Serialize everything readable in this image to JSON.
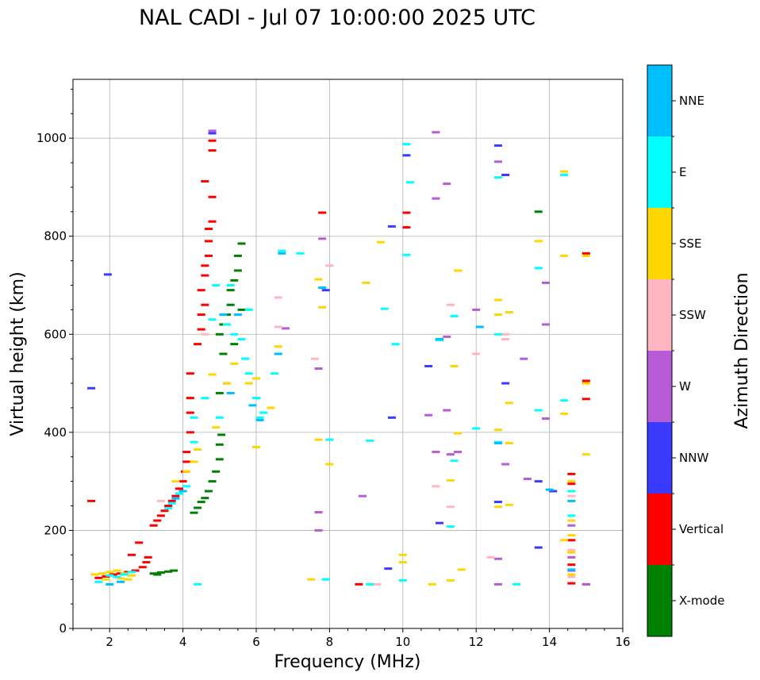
{
  "chart_data": {
    "type": "scatter",
    "title": "NAL CADI - Jul 07 10:00:00 2025 UTC",
    "xlabel": "Frequency (MHz)",
    "ylabel": "Virtual height (km)",
    "xlim": [
      1,
      16
    ],
    "ylim": [
      0,
      1120
    ],
    "xticks": [
      2,
      4,
      6,
      8,
      10,
      12,
      14,
      16
    ],
    "yticks": [
      0,
      200,
      400,
      600,
      800,
      1000
    ],
    "grid": true,
    "colorbar": {
      "label": "Azimuth Direction",
      "categories": [
        {
          "name": "X-mode",
          "color": "#008000"
        },
        {
          "name": "Vertical",
          "color": "#ff0000"
        },
        {
          "name": "NNW",
          "color": "#3a3aff"
        },
        {
          "name": "W",
          "color": "#b65cd6"
        },
        {
          "name": "SSW",
          "color": "#ffb6c1"
        },
        {
          "name": "SSE",
          "color": "#ffd700"
        },
        {
          "name": "E",
          "color": "#00ffff"
        },
        {
          "name": "NNE",
          "color": "#00bfff"
        }
      ]
    },
    "series": [
      {
        "name": "X-mode",
        "points": [
          [
            3.2,
            112
          ],
          [
            3.4,
            114
          ],
          [
            3.6,
            116
          ],
          [
            3.3,
            110
          ],
          [
            3.75,
            118
          ],
          [
            4.3,
            236
          ],
          [
            4.4,
            246
          ],
          [
            4.5,
            258
          ],
          [
            4.6,
            266
          ],
          [
            4.7,
            280
          ],
          [
            4.8,
            300
          ],
          [
            4.9,
            320
          ],
          [
            5.0,
            345
          ],
          [
            5.0,
            375
          ],
          [
            5.05,
            395
          ],
          [
            5.0,
            600
          ],
          [
            5.1,
            620
          ],
          [
            5.2,
            640
          ],
          [
            5.3,
            660
          ],
          [
            5.3,
            690
          ],
          [
            5.4,
            710
          ],
          [
            5.5,
            730
          ],
          [
            5.5,
            760
          ],
          [
            5.6,
            785
          ],
          [
            5.0,
            480
          ],
          [
            5.2,
            500
          ],
          [
            5.1,
            560
          ],
          [
            5.4,
            580
          ],
          [
            5.6,
            650
          ],
          [
            13.7,
            850
          ]
        ]
      },
      {
        "name": "Vertical",
        "points": [
          [
            1.7,
            103
          ],
          [
            1.9,
            106
          ],
          [
            2.1,
            110
          ],
          [
            2.3,
            112
          ],
          [
            2.5,
            115
          ],
          [
            2.7,
            118
          ],
          [
            2.9,
            125
          ],
          [
            3.0,
            135
          ],
          [
            3.05,
            145
          ],
          [
            3.2,
            210
          ],
          [
            3.3,
            220
          ],
          [
            3.4,
            230
          ],
          [
            3.5,
            240
          ],
          [
            3.6,
            250
          ],
          [
            3.7,
            260
          ],
          [
            3.8,
            270
          ],
          [
            3.9,
            285
          ],
          [
            4.0,
            300
          ],
          [
            4.05,
            320
          ],
          [
            4.1,
            340
          ],
          [
            4.1,
            360
          ],
          [
            4.2,
            400
          ],
          [
            4.2,
            440
          ],
          [
            4.2,
            470
          ],
          [
            4.2,
            520
          ],
          [
            4.4,
            580
          ],
          [
            4.5,
            610
          ],
          [
            4.5,
            640
          ],
          [
            4.6,
            660
          ],
          [
            4.5,
            690
          ],
          [
            4.6,
            720
          ],
          [
            4.6,
            740
          ],
          [
            4.7,
            760
          ],
          [
            4.7,
            790
          ],
          [
            4.7,
            815
          ],
          [
            4.8,
            830
          ],
          [
            4.8,
            880
          ],
          [
            4.6,
            912
          ],
          [
            4.8,
            975
          ],
          [
            4.8,
            995
          ],
          [
            1.5,
            260
          ],
          [
            2.6,
            150
          ],
          [
            2.8,
            175
          ],
          [
            7.8,
            848
          ],
          [
            10.1,
            848
          ],
          [
            10.1,
            818
          ],
          [
            15.0,
            765
          ],
          [
            15.0,
            505
          ],
          [
            15.0,
            468
          ],
          [
            14.6,
            315
          ],
          [
            14.6,
            295
          ],
          [
            14.6,
            180
          ],
          [
            14.6,
            130
          ],
          [
            14.6,
            92
          ],
          [
            8.8,
            90
          ]
        ]
      },
      {
        "name": "NNW",
        "points": [
          [
            1.5,
            490
          ],
          [
            1.95,
            722
          ],
          [
            4.8,
            1010
          ],
          [
            7.9,
            690
          ],
          [
            9.7,
            820
          ],
          [
            9.7,
            430
          ],
          [
            9.6,
            122
          ],
          [
            10.7,
            535
          ],
          [
            11,
            215
          ],
          [
            12.6,
            985
          ],
          [
            12.6,
            258
          ],
          [
            12.8,
            500
          ],
          [
            12.8,
            925
          ],
          [
            13.7,
            300
          ],
          [
            13.7,
            165
          ],
          [
            14.1,
            280
          ],
          [
            15.0,
            90
          ],
          [
            10.1,
            965
          ]
        ]
      },
      {
        "name": "W",
        "points": [
          [
            4.8,
            1015
          ],
          [
            6.8,
            612
          ],
          [
            7.8,
            795
          ],
          [
            7.7,
            530
          ],
          [
            7.7,
            200
          ],
          [
            7.7,
            237
          ],
          [
            8.9,
            270
          ],
          [
            10.7,
            435
          ],
          [
            10.9,
            1012
          ],
          [
            10.9,
            877
          ],
          [
            10.9,
            360
          ],
          [
            11.2,
            907
          ],
          [
            11.2,
            595
          ],
          [
            11.2,
            445
          ],
          [
            11.3,
            355
          ],
          [
            11.5,
            360
          ],
          [
            12.0,
            650
          ],
          [
            12.6,
            952
          ],
          [
            12.6,
            142
          ],
          [
            12.6,
            90
          ],
          [
            12.8,
            335
          ],
          [
            13.3,
            550
          ],
          [
            13.4,
            305
          ],
          [
            13.9,
            705
          ],
          [
            13.9,
            620
          ],
          [
            13.9,
            428
          ],
          [
            14.6,
            210
          ],
          [
            14.6,
            145
          ],
          [
            14.6,
            118
          ],
          [
            15.0,
            90
          ]
        ]
      },
      {
        "name": "SSW",
        "points": [
          [
            3.4,
            260
          ],
          [
            4.6,
            600
          ],
          [
            6.6,
            675
          ],
          [
            6.6,
            615
          ],
          [
            7.6,
            550
          ],
          [
            8.0,
            740
          ],
          [
            9.3,
            90
          ],
          [
            10.9,
            290
          ],
          [
            11.3,
            660
          ],
          [
            11.3,
            248
          ],
          [
            12.0,
            560
          ],
          [
            12.4,
            145
          ],
          [
            12.8,
            600
          ],
          [
            12.8,
            590
          ],
          [
            14.6,
            270
          ],
          [
            14.6,
            160
          ],
          [
            14.6,
            105
          ]
        ]
      },
      {
        "name": "SSE",
        "points": [
          [
            1.6,
            110
          ],
          [
            1.8,
            112
          ],
          [
            2.0,
            115
          ],
          [
            2.2,
            118
          ],
          [
            2.4,
            112
          ],
          [
            2.6,
            108
          ],
          [
            2.5,
            100
          ],
          [
            1.9,
            100
          ],
          [
            2.3,
            102
          ],
          [
            3.8,
            300
          ],
          [
            4.1,
            320
          ],
          [
            4.3,
            340
          ],
          [
            4.4,
            365
          ],
          [
            4.9,
            410
          ],
          [
            5.2,
            500
          ],
          [
            5.4,
            540
          ],
          [
            5.8,
            500
          ],
          [
            6.0,
            510
          ],
          [
            6.0,
            370
          ],
          [
            6.4,
            450
          ],
          [
            6.6,
            575
          ],
          [
            4.8,
            518
          ],
          [
            7.5,
            100
          ],
          [
            7.7,
            712
          ],
          [
            7.7,
            385
          ],
          [
            8.0,
            335
          ],
          [
            7.8,
            655
          ],
          [
            9.0,
            705
          ],
          [
            9.4,
            788
          ],
          [
            10.0,
            150
          ],
          [
            10.0,
            135
          ],
          [
            10.8,
            90
          ],
          [
            11.0,
            590
          ],
          [
            11.3,
            302
          ],
          [
            11.3,
            98
          ],
          [
            11.4,
            535
          ],
          [
            11.5,
            730
          ],
          [
            11.5,
            398
          ],
          [
            11.6,
            120
          ],
          [
            12.6,
            670
          ],
          [
            12.6,
            640
          ],
          [
            12.6,
            405
          ],
          [
            12.6,
            248
          ],
          [
            12.9,
            645
          ],
          [
            12.9,
            460
          ],
          [
            12.9,
            378
          ],
          [
            12.9,
            252
          ],
          [
            13.7,
            790
          ],
          [
            14.4,
            932
          ],
          [
            14.4,
            760
          ],
          [
            14.4,
            438
          ],
          [
            14.4,
            180
          ],
          [
            14.6,
            300
          ],
          [
            14.6,
            260
          ],
          [
            14.6,
            220
          ],
          [
            14.6,
            190
          ],
          [
            14.6,
            155
          ],
          [
            14.6,
            110
          ],
          [
            15.0,
            355
          ],
          [
            15.0,
            500
          ],
          [
            15.0,
            760
          ]
        ]
      },
      {
        "name": "E",
        "points": [
          [
            1.7,
            95
          ],
          [
            2.0,
            108
          ],
          [
            2.2,
            105
          ],
          [
            2.4,
            110
          ],
          [
            2.6,
            115
          ],
          [
            3.6,
            245
          ],
          [
            3.7,
            255
          ],
          [
            3.9,
            275
          ],
          [
            4.1,
            290
          ],
          [
            4.3,
            380
          ],
          [
            4.3,
            430
          ],
          [
            4.6,
            470
          ],
          [
            4.8,
            630
          ],
          [
            5.2,
            620
          ],
          [
            5.4,
            600
          ],
          [
            5.6,
            590
          ],
          [
            5.7,
            550
          ],
          [
            5.8,
            520
          ],
          [
            6.0,
            470
          ],
          [
            6.1,
            430
          ],
          [
            6.2,
            440
          ],
          [
            6.5,
            520
          ],
          [
            4.9,
            700
          ],
          [
            5.3,
            700
          ],
          [
            5.8,
            650
          ],
          [
            5.0,
            430
          ],
          [
            4.4,
            90
          ],
          [
            6.7,
            770
          ],
          [
            7.2,
            765
          ],
          [
            7.9,
            100
          ],
          [
            8.0,
            385
          ],
          [
            9.1,
            90
          ],
          [
            9.1,
            383
          ],
          [
            9.5,
            652
          ],
          [
            9.8,
            580
          ],
          [
            10.0,
            98
          ],
          [
            10.1,
            762
          ],
          [
            10.1,
            988
          ],
          [
            10.2,
            910
          ],
          [
            11.0,
            588
          ],
          [
            11.3,
            208
          ],
          [
            11.4,
            637
          ],
          [
            11.4,
            342
          ],
          [
            12.0,
            408
          ],
          [
            12.6,
            920
          ],
          [
            12.6,
            600
          ],
          [
            12.6,
            380
          ],
          [
            13.1,
            90
          ],
          [
            13.7,
            735
          ],
          [
            13.7,
            445
          ],
          [
            14.4,
            925
          ],
          [
            14.4,
            465
          ],
          [
            14.6,
            280
          ],
          [
            14.6,
            230
          ]
        ]
      },
      {
        "name": "NNE",
        "points": [
          [
            2.0,
            90
          ],
          [
            2.3,
            95
          ],
          [
            3.8,
            265
          ],
          [
            4.0,
            280
          ],
          [
            5.1,
            640
          ],
          [
            5.5,
            640
          ],
          [
            5.3,
            480
          ],
          [
            5.9,
            455
          ],
          [
            6.1,
            425
          ],
          [
            6.6,
            560
          ],
          [
            6.7,
            765
          ],
          [
            7.8,
            695
          ],
          [
            11.0,
            590
          ],
          [
            12.1,
            615
          ],
          [
            12.6,
            378
          ],
          [
            14.0,
            283
          ],
          [
            14.6,
            120
          ],
          [
            14.6,
            260
          ]
        ]
      }
    ]
  }
}
